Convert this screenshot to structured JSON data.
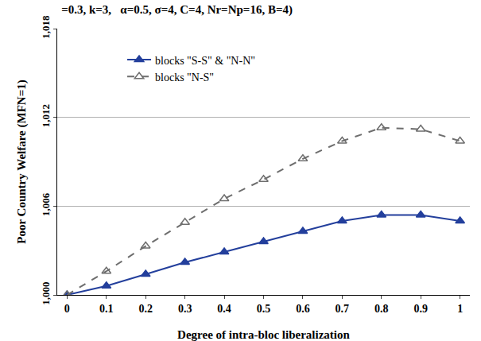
{
  "chart_data": {
    "type": "line",
    "title": "=0.3, k=3,   α=0.5, σ=4, C=4, Nr=Np=16, B=4)",
    "x_label": "Degree of intra-bloc liberalization",
    "y_label": "Poor Country Welfare (MFN=1)",
    "x": [
      0,
      0.1,
      0.2,
      0.3,
      0.4,
      0.5,
      0.6,
      0.7,
      0.8,
      0.9,
      1
    ],
    "series": [
      {
        "name": "blocks \"S-S\" & \"N-N\"",
        "color": "#233f9c",
        "marker": "triangle-up",
        "line_style": "solid",
        "values": [
          1.0,
          1.0006,
          1.0014,
          1.0022,
          1.0029,
          1.0036,
          1.0043,
          1.005,
          1.0054,
          1.0054,
          1.005
        ]
      },
      {
        "name": "blocks \"N-S\"",
        "color": "#6e6e6e",
        "marker": "triangle-up-open",
        "line_style": "dash",
        "values": [
          1.0,
          1.0016,
          1.0033,
          1.0049,
          1.0065,
          1.0078,
          1.0092,
          1.0104,
          1.0113,
          1.0112,
          1.0104
        ]
      }
    ],
    "xlim": [
      -0.025,
      1.025
    ],
    "xticks": [
      0,
      0.1,
      0.2,
      0.3,
      0.4,
      0.5,
      0.6,
      0.7,
      0.8,
      0.9,
      1
    ],
    "ylim": [
      1.0,
      1.018
    ],
    "yticks": [
      {
        "value": 1.0,
        "label": "1,000"
      },
      {
        "value": 1.006,
        "label": "1,006"
      },
      {
        "value": 1.012,
        "label": "1,012"
      },
      {
        "value": 1.018,
        "label": "1,018"
      }
    ],
    "grid": true,
    "legend": "upper left"
  }
}
